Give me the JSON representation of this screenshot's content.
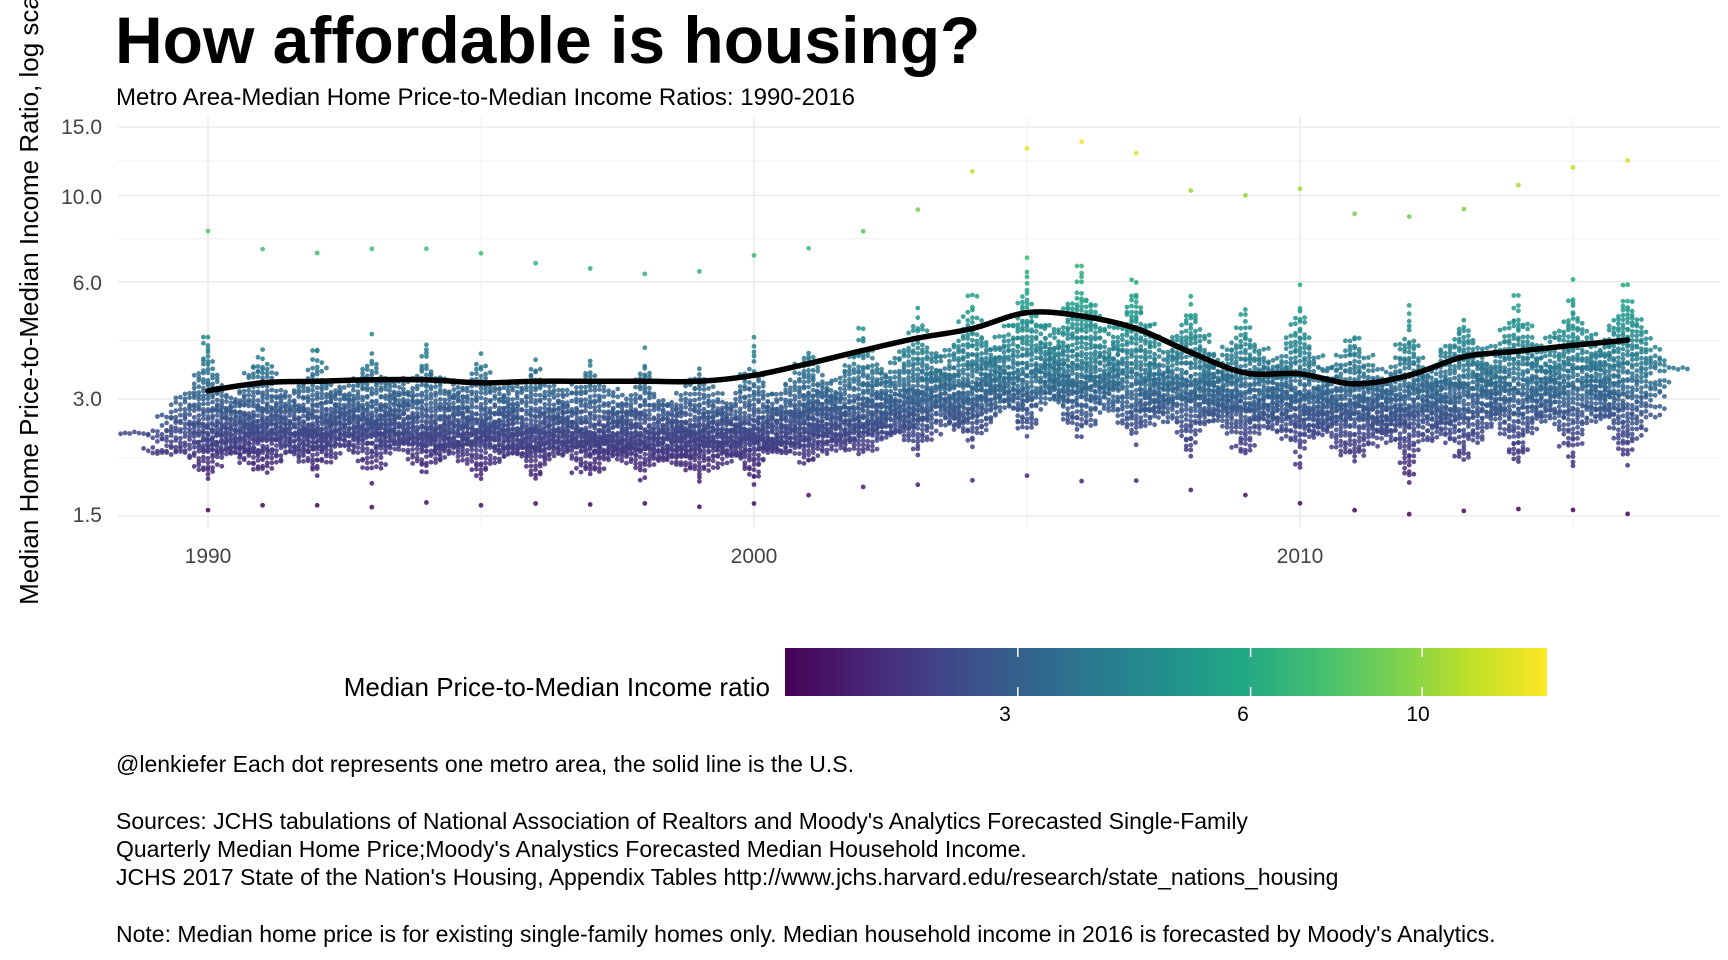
{
  "title": "How affordable is housing?",
  "subtitle": "Metro Area-Median Home Price-to-Median Income Ratios: 1990-2016",
  "caption": {
    "line1": "@lenkiefer Each dot represents one metro area, the solid line is the U.S.",
    "line2": "Sources:  JCHS tabulations of National Association of Realtors and Moody's Analytics Forecasted Single-Family",
    "line3": "Quarterly Median Home Price;Moody's Analystics Forecasted Median Household Income.",
    "line4": "JCHS 2017 State of the Nation's Housing, Appendix Tables http://www.jchs.harvard.edu/research/state_nations_housing",
    "line5": "Note: Median home price is for existing single-family homes only. Median household income in 2016 is forecasted by Moody's Analytics."
  },
  "colors": {
    "viridis": [
      "#440154",
      "#482475",
      "#414487",
      "#355f8d",
      "#2a788e",
      "#21908d",
      "#22a884",
      "#42be71",
      "#7ad151",
      "#bddf26",
      "#fde725"
    ],
    "us_line": "#000000",
    "grid": "#ebebeb"
  },
  "chart_data": {
    "type": "scatter",
    "title": "How affordable is housing?",
    "subtitle": "Metro Area-Median Home Price-to-Median Income Ratios: 1990-2016",
    "xlabel": "",
    "ylabel": "Median Home Price-to-Median Income Ratio, log sca",
    "y_scale": "log",
    "ylim": [
      1.4,
      16.5
    ],
    "xlim": [
      1988.5,
      2017.8
    ],
    "y_ticks": [
      "1.5",
      "3.0",
      "6.0",
      "10.0",
      "15.0"
    ],
    "y_tick_values": [
      1.5,
      3.0,
      6.0,
      10.0,
      15.0
    ],
    "x_ticks": [
      "1990",
      "2000",
      "2010"
    ],
    "x_tick_values": [
      1990,
      2000,
      2010
    ],
    "grid": true,
    "legend": {
      "title": "Median Price-to-Median Income ratio",
      "placement": "bottom",
      "ticks": [
        "3",
        "6",
        "10"
      ],
      "tick_values": [
        3,
        6,
        10
      ],
      "range": [
        1.5,
        14.5
      ]
    },
    "metro_distribution": {
      "description_of_series": "beeswarm of metro area ratios per year",
      "years": [
        1990,
        1991,
        1992,
        1993,
        1994,
        1995,
        1996,
        1997,
        1998,
        1999,
        2000,
        2001,
        2002,
        2003,
        2004,
        2005,
        2006,
        2007,
        2008,
        2009,
        2010,
        2011,
        2012,
        2013,
        2014,
        2015,
        2016
      ],
      "center": [
        2.5,
        2.5,
        2.6,
        2.6,
        2.6,
        2.5,
        2.5,
        2.5,
        2.4,
        2.4,
        2.5,
        2.6,
        2.8,
        3.0,
        3.2,
        3.5,
        3.6,
        3.4,
        3.2,
        3.1,
        3.0,
        2.9,
        2.9,
        3.1,
        3.2,
        3.3,
        3.4
      ],
      "min": [
        1.55,
        1.6,
        1.6,
        1.58,
        1.62,
        1.6,
        1.62,
        1.6,
        1.62,
        1.58,
        1.62,
        1.7,
        1.78,
        1.8,
        1.85,
        1.9,
        1.85,
        1.85,
        1.75,
        1.7,
        1.62,
        1.55,
        1.52,
        1.55,
        1.56,
        1.55,
        1.52
      ],
      "max": [
        8.1,
        7.3,
        7.1,
        7.3,
        7.3,
        7.1,
        6.7,
        6.5,
        6.3,
        6.4,
        7.0,
        7.3,
        8.1,
        9.2,
        11.5,
        13.2,
        13.8,
        12.8,
        10.3,
        10.0,
        10.4,
        9.0,
        8.8,
        9.2,
        10.6,
        11.8,
        12.3
      ]
    },
    "series": [
      {
        "name": "U.S.",
        "x": [
          1990,
          1991,
          1992,
          1993,
          1994,
          1995,
          1996,
          1997,
          1998,
          1999,
          2000,
          2001,
          2002,
          2003,
          2004,
          2005,
          2006,
          2007,
          2008,
          2009,
          2010,
          2011,
          2012,
          2013,
          2014,
          2015,
          2016
        ],
        "values": [
          3.15,
          3.3,
          3.33,
          3.36,
          3.36,
          3.3,
          3.33,
          3.33,
          3.33,
          3.33,
          3.45,
          3.7,
          4.0,
          4.3,
          4.55,
          5.0,
          4.9,
          4.55,
          3.95,
          3.5,
          3.48,
          3.28,
          3.45,
          3.85,
          3.98,
          4.12,
          4.25
        ]
      }
    ]
  }
}
